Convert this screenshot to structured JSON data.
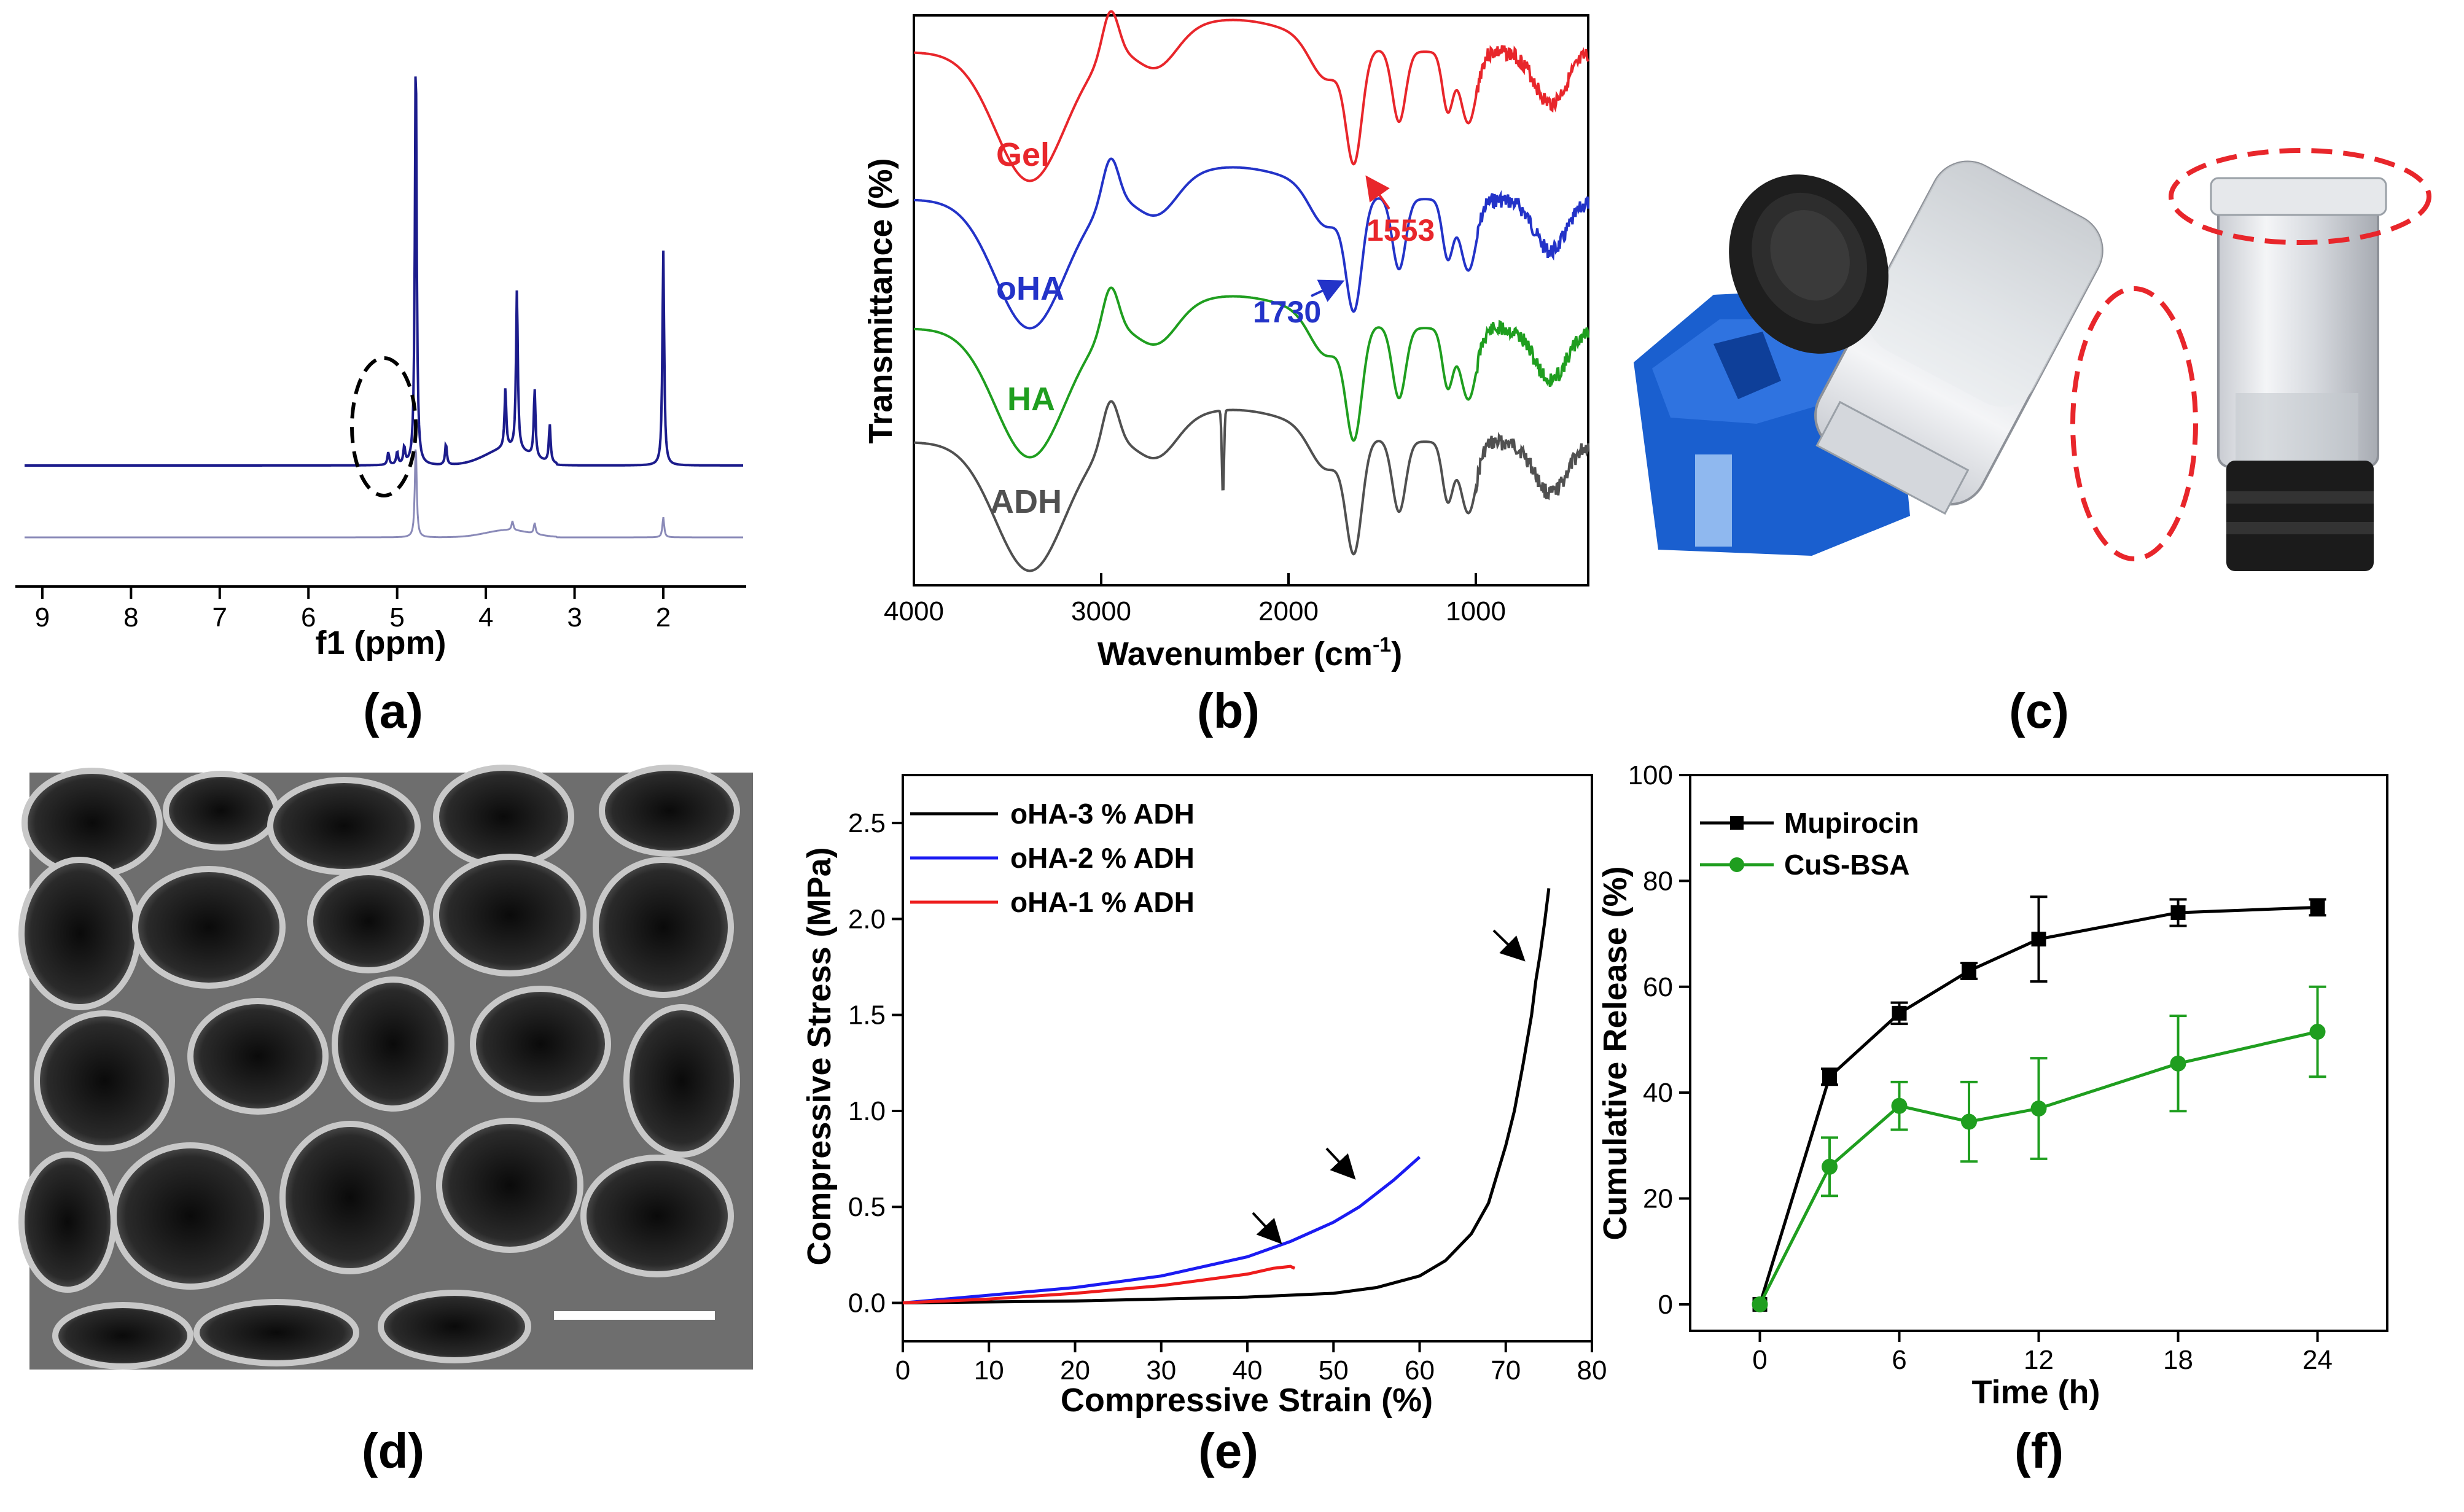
{
  "chart_data": [
    {
      "panel": "(a)",
      "type": "line",
      "title": "",
      "xlabel": "f1 (ppm)",
      "xticks": [
        "9",
        "8",
        "7",
        "6",
        "5",
        "4",
        "3",
        "2"
      ],
      "xlim": [
        9.2,
        1.1
      ],
      "series": [
        {
          "name": "spectrum-top",
          "color": "#1c1c8c",
          "peaks": [
            [
              4.79,
              1.0
            ],
            [
              3.65,
              0.38
            ],
            [
              3.45,
              0.16
            ],
            [
              3.78,
              0.14
            ],
            [
              3.28,
              0.09
            ],
            [
              4.45,
              0.05
            ],
            [
              5.1,
              0.03
            ],
            [
              5.0,
              0.03
            ],
            [
              4.92,
              0.04
            ],
            [
              2.0,
              0.51
            ]
          ]
        },
        {
          "name": "spectrum-bottom",
          "color": "#8a8ab8",
          "peaks": [
            [
              4.79,
              0.52
            ],
            [
              3.7,
              0.05
            ],
            [
              3.45,
              0.06
            ],
            [
              2.0,
              0.11
            ]
          ]
        }
      ],
      "annotations": [
        {
          "type": "dashed-ellipse",
          "around": "5.0 ppm"
        }
      ]
    },
    {
      "panel": "(b)",
      "type": "line",
      "title": "",
      "xlabel": "Wavenumber (cm",
      "xlabel_sup": "-1",
      "xlabel_end": ")",
      "ylabel": "Transmittance (%)",
      "xlim": [
        4000,
        400
      ],
      "xticks": [
        "4000",
        "3000",
        "2000",
        "1000"
      ],
      "series": [
        {
          "name": "Gel",
          "color": "#e8262b"
        },
        {
          "name": "oHA",
          "color": "#2333c8"
        },
        {
          "name": "HA",
          "color": "#1f9e1f"
        },
        {
          "name": "ADH",
          "color": "#505050"
        }
      ],
      "annotations": [
        {
          "text": "1553",
          "color": "#e8262b",
          "x": 1553
        },
        {
          "text": "1730",
          "color": "#2333c8",
          "x": 1730
        }
      ]
    },
    {
      "panel": "(e)",
      "type": "line",
      "title": "",
      "xlabel": "Compressive Strain (%)",
      "ylabel": "Compressive Stress (MPa)",
      "xlim": [
        0,
        80
      ],
      "ylim": [
        -0.2,
        2.75
      ],
      "xticks": [
        "0",
        "10",
        "20",
        "30",
        "40",
        "50",
        "60",
        "70",
        "80"
      ],
      "yticks": [
        "0.0",
        "0.5",
        "1.0",
        "1.5",
        "2.0",
        "2.5"
      ],
      "series": [
        {
          "name": "oHA-3 % ADH",
          "color": "#000000",
          "x": [
            0,
            20,
            40,
            50,
            55,
            60,
            63,
            66,
            68,
            70,
            71,
            72,
            73,
            73.5,
            74,
            74.5,
            75
          ],
          "y": [
            0,
            0.01,
            0.03,
            0.05,
            0.08,
            0.14,
            0.22,
            0.36,
            0.52,
            0.82,
            1.0,
            1.24,
            1.5,
            1.68,
            1.82,
            1.98,
            2.16
          ]
        },
        {
          "name": "oHA-2 % ADH",
          "color": "#1b1bf2",
          "x": [
            0,
            10,
            20,
            30,
            40,
            45,
            50,
            53,
            55,
            57,
            60
          ],
          "y": [
            0,
            0.04,
            0.08,
            0.14,
            0.24,
            0.32,
            0.42,
            0.5,
            0.57,
            0.64,
            0.76
          ]
        },
        {
          "name": "oHA-1 % ADH",
          "color": "#ee1c1c",
          "x": [
            0,
            10,
            20,
            30,
            40,
            43,
            45,
            45.5
          ],
          "y": [
            0,
            0.02,
            0.05,
            0.09,
            0.15,
            0.18,
            0.19,
            0.18
          ]
        }
      ]
    },
    {
      "panel": "(f)",
      "type": "line",
      "title": "",
      "xlabel": "Time (h)",
      "ylabel": "Cumulative Release (%)",
      "xlim": [
        -3,
        27
      ],
      "ylim": [
        -5,
        100
      ],
      "xticks": [
        "0",
        "6",
        "12",
        "18",
        "24"
      ],
      "yticks": [
        "0",
        "20",
        "40",
        "60",
        "80",
        "100"
      ],
      "series": [
        {
          "name": "Mupirocin",
          "color": "#000000",
          "marker": "square",
          "x": [
            0,
            3,
            6,
            9,
            12,
            18,
            24
          ],
          "y": [
            0,
            43,
            55,
            63,
            69,
            74,
            75
          ],
          "err": [
            0,
            1.5,
            2,
            1.5,
            8,
            2.5,
            1.5
          ]
        },
        {
          "name": "CuS-BSA",
          "color": "#1f9e1f",
          "marker": "circle",
          "x": [
            0,
            3,
            6,
            9,
            12,
            18,
            24
          ],
          "y": [
            0,
            26,
            37.5,
            34.5,
            37,
            45.5,
            51.5
          ],
          "err": [
            0,
            5.5,
            4.5,
            7.5,
            9.5,
            9,
            8.5
          ]
        }
      ]
    }
  ],
  "panels": {
    "a": "(a)",
    "b": "(b)",
    "c": "(c)",
    "d": "(d)",
    "e": "(e)",
    "f": "(f)"
  }
}
